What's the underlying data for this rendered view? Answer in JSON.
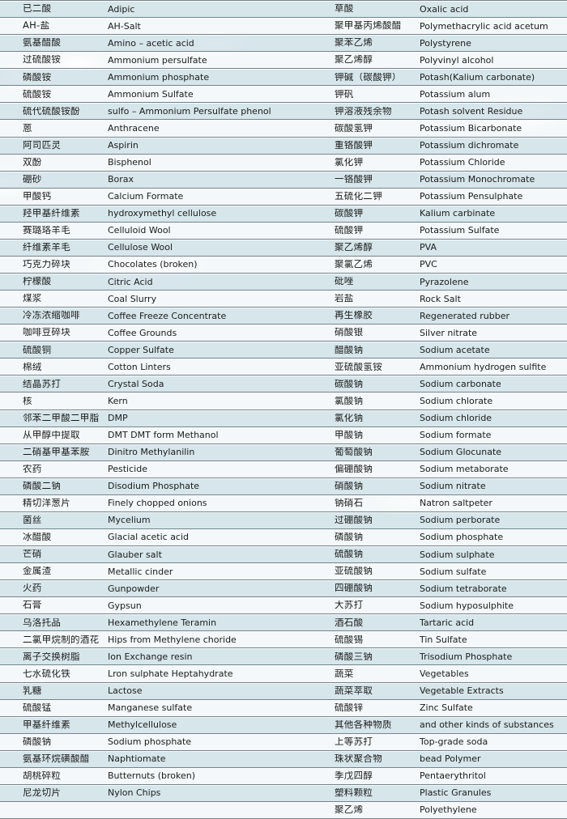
{
  "colors": {
    "sky": "#d8e6eb",
    "row_odd": "rgba(214,229,235,0.85)",
    "row_even": "rgba(255,255,255,0.72)",
    "separator_line": "#73828a",
    "text": "#1b1b1b"
  },
  "table": {
    "rows": [
      [
        "已二酸",
        "Adipic",
        "草酸",
        "Oxalic acid"
      ],
      [
        "AH-盐",
        "AH-Salt",
        "聚甲基丙烯酸醋",
        "Polymethacrylic acid acetum"
      ],
      [
        "氨基醋酸",
        "Amino – acetic acid",
        "聚苯乙烯",
        "Polystyrene"
      ],
      [
        "过硫酸铵",
        "Ammonium persulfate",
        "聚乙烯醇",
        "Polyvinyl alcohol"
      ],
      [
        "磷酸铵",
        "Ammonium phosphate",
        "钾碱（碳酸钾）",
        "Potash(Kalium carbonate)"
      ],
      [
        "硫酸铵",
        "Ammonium Sulfate",
        "钾矾",
        "Potassium alum"
      ],
      [
        "硫代硫酸铵酚",
        "sulfo – Ammonium Persulfate phenol",
        "钾溶液残余物",
        "Potash solvent Residue"
      ],
      [
        "蒽",
        "Anthracene",
        "碳酸氢钾",
        "Potassium Bicarbonate"
      ],
      [
        "阿司匹灵",
        "Aspirin",
        "重铬酸钾",
        "Potassium dichromate"
      ],
      [
        "双酚",
        "Bisphenol",
        "氯化钾",
        "Potassium Chloride"
      ],
      [
        "硼砂",
        "Borax",
        "一铬酸钾",
        "Potassium Monochromate"
      ],
      [
        "甲酸钙",
        "Calcium Formate",
        "五硫化二钾",
        "Potassium Pensulphate"
      ],
      [
        "羟甲基纤维素",
        "hydroxymethyl cellulose",
        "碳酸钾",
        "Kalium carbinate"
      ],
      [
        "赛璐珞羊毛",
        "Celluloid Wool",
        "硫酸钾",
        "Potassium Sulfate"
      ],
      [
        "纤维素羊毛",
        "Cellulose Wool",
        "聚乙烯醇",
        "PVA"
      ],
      [
        "巧克力碎块",
        "Chocolates (broken)",
        "聚氯乙烯",
        "PVC"
      ],
      [
        "柠檬酸",
        "Citric Acid",
        "砒唑",
        "Pyrazolene"
      ],
      [
        "煤浆",
        "Coal Slurry",
        "岩盐",
        "Rock Salt"
      ],
      [
        "冷冻浓缩咖啡",
        "Coffee Freeze Concentrate",
        "再生橡胶",
        "Regenerated rubber"
      ],
      [
        "咖啡豆碎块",
        "Coffee Grounds",
        "硝酸银",
        "Silver nitrate"
      ],
      [
        "硫酸铜",
        "Copper Sulfate",
        "醋酸钠",
        "Sodium acetate"
      ],
      [
        "棉绒",
        "Cotton Linters",
        "亚硫酸氢铵",
        "Ammonium hydrogen sulfite"
      ],
      [
        "结晶苏打",
        "Crystal Soda",
        "碳酸钠",
        "Sodium carbonate"
      ],
      [
        "核",
        "Kern",
        "氯酸钠",
        "Sodium chlorate"
      ],
      [
        "邻苯二甲酸二甲脂",
        "DMP",
        "氯化钠",
        "Sodium chloride"
      ],
      [
        "从甲醇中提取",
        "DMT DMT form Methanol",
        "甲酸钠",
        "Sodium formate"
      ],
      [
        "二硝基甲基苯胺",
        "Dinitro Methylanilin",
        "葡萄酸钠",
        "Sodium Glocunate"
      ],
      [
        "农药",
        "Pesticide",
        "偏硼酸钠",
        "Sodium metaborate"
      ],
      [
        "磷酸二钠",
        "Disodium Phosphate",
        "硝酸钠",
        "Sodium nitrate"
      ],
      [
        "精切洋葱片",
        "Finely chopped onions",
        "钠硝石",
        "Natron saltpeter"
      ],
      [
        "菌丝",
        "Mycelium",
        "过硼酸钠",
        "Sodium perborate"
      ],
      [
        "冰醋酸",
        "Glacial acetic acid",
        "磷酸钠",
        "Sodium phosphate"
      ],
      [
        "芒硝",
        "Glauber salt",
        "硫酸钠",
        "Sodium sulphate"
      ],
      [
        "金属渣",
        "Metallic cinder",
        "亚硫酸钠",
        "Sodium sulfate"
      ],
      [
        "火药",
        "Gunpowder",
        "四硼酸钠",
        "Sodium tetraborate"
      ],
      [
        "石膏",
        "Gypsun",
        "大苏打",
        "Sodium hyposulphite"
      ],
      [
        "乌洛托品",
        "Hexamethylene Teramin",
        "酒石酸",
        "Tartaric acid"
      ],
      [
        "二氯甲烷制的酒花",
        "Hips from Methylene choride",
        "硫酸锡",
        "Tin Sulfate"
      ],
      [
        "离子交换树脂",
        "Ion Exchange resin",
        "磷酸三钠",
        "Trisodium Phosphate"
      ],
      [
        "七水硫化铁",
        "Lron sulphate Heptahydrate",
        "蔬菜",
        "Vegetables"
      ],
      [
        "乳糖",
        "Lactose",
        "蔬菜萃取",
        "Vegetable Extracts"
      ],
      [
        "硫酸锰",
        "Manganese sulfate",
        "硫酸锌",
        "Zinc Sulfate"
      ],
      [
        "甲基纤维素",
        "Methylcellulose",
        "其他各种物质",
        "and other kinds of substances"
      ],
      [
        "磷酸钠",
        "Sodium phosphate",
        "上等苏打",
        "Top-grade soda"
      ],
      [
        "氨基环烷磺酸醋",
        "Naphtiomate",
        "珠状聚合物",
        "bead Polymer"
      ],
      [
        "胡桃碎粒",
        "Butternuts (broken)",
        "季戊四醇",
        "Pentaerythritol"
      ],
      [
        "尼龙切片",
        "Nylon Chips",
        "塑料颗粒",
        "Plastic Granules"
      ],
      [
        "",
        "",
        "聚乙烯",
        "Polyethylene"
      ]
    ]
  }
}
